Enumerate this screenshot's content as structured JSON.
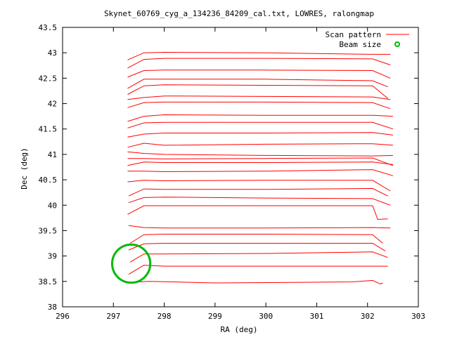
{
  "chart_data": {
    "type": "line",
    "title": "Skynet_60769_cyg_a_134236_84209_cal.txt, LOWRES, ralongmap",
    "xlabel": "RA (deg)",
    "ylabel": "Dec (deg)",
    "xlim": [
      296,
      303
    ],
    "ylim": [
      38,
      43.5
    ],
    "x_ticks": [
      296,
      297,
      298,
      299,
      300,
      301,
      302,
      303
    ],
    "y_ticks": [
      38,
      38.5,
      39,
      39.5,
      40,
      40.5,
      41,
      41.5,
      42,
      42.5,
      43,
      43.5
    ],
    "x_tick_labels": [
      "296",
      "297",
      "298",
      "299",
      "300",
      "301",
      "302",
      "303"
    ],
    "y_tick_labels": [
      "38",
      "38.5",
      "39",
      "39.5",
      "40",
      "40.5",
      "41",
      "41.5",
      "42",
      "42.5",
      "43",
      "43.5"
    ],
    "grid": false,
    "legend_position": "top-right",
    "colors": {
      "scan": "#ff0000",
      "beam": "#00bb00"
    },
    "series": [
      {
        "name": "Scan pattern",
        "scans": [
          {
            "dir": "L2R",
            "x": [
              297.33,
              297.7,
              299.0,
              300.5,
              301.7,
              302.1,
              302.25,
              302.3
            ],
            "y": [
              38.48,
              38.5,
              38.47,
              38.48,
              38.49,
              38.52,
              38.45,
              38.47
            ]
          },
          {
            "dir": "R2L",
            "x": [
              302.4,
              302.1,
              300.0,
              298.0,
              297.6,
              297.3
            ],
            "y": [
              38.8,
              38.8,
              38.8,
              38.8,
              38.82,
              38.64
            ]
          },
          {
            "dir": "L2R",
            "x": [
              297.33,
              297.6,
              298.0,
              300.0,
              302.1,
              302.4
            ],
            "y": [
              38.88,
              39.04,
              39.04,
              39.05,
              39.08,
              38.97
            ]
          },
          {
            "dir": "R2L",
            "x": [
              302.35,
              302.1,
              300.0,
              298.0,
              297.6,
              297.3
            ],
            "y": [
              39.1,
              39.25,
              39.25,
              39.25,
              39.24,
              39.12
            ]
          },
          {
            "dir": "L2R",
            "x": [
              297.33,
              297.6,
              298.0,
              300.0,
              302.1,
              302.3
            ],
            "y": [
              39.25,
              39.42,
              39.43,
              39.43,
              39.42,
              39.25
            ]
          },
          {
            "dir": "R2L",
            "x": [
              302.45,
              302.1,
              300.0,
              298.0,
              297.6,
              297.3
            ],
            "y": [
              39.55,
              39.56,
              39.55,
              39.55,
              39.56,
              39.6
            ]
          },
          {
            "dir": "L2R",
            "x": [
              297.28,
              297.6,
              298.0,
              300.0,
              302.1,
              302.2,
              302.4
            ],
            "y": [
              39.82,
              39.99,
              39.99,
              39.99,
              39.99,
              39.72,
              39.73
            ]
          },
          {
            "dir": "R2L",
            "x": [
              302.45,
              302.1,
              300.0,
              298.0,
              297.6,
              297.3
            ],
            "y": [
              40.0,
              40.13,
              40.14,
              40.16,
              40.15,
              40.05
            ]
          },
          {
            "dir": "L2R",
            "x": [
              297.3,
              297.6,
              298.0,
              300.0,
              302.1,
              302.4
            ],
            "y": [
              40.18,
              40.32,
              40.31,
              40.31,
              40.33,
              40.18
            ]
          },
          {
            "dir": "R2L",
            "x": [
              302.45,
              302.1,
              300.0,
              298.0,
              297.6,
              297.28
            ],
            "y": [
              40.28,
              40.49,
              40.49,
              40.48,
              40.49,
              40.46
            ]
          },
          {
            "dir": "L2R",
            "x": [
              297.28,
              297.6,
              298.0,
              300.0,
              302.1,
              302.5
            ],
            "y": [
              40.67,
              40.67,
              40.66,
              40.67,
              40.7,
              40.58
            ]
          },
          {
            "dir": "R2L",
            "x": [
              302.5,
              302.1,
              300.0,
              298.0,
              297.6,
              297.28
            ],
            "y": [
              40.8,
              40.85,
              40.84,
              40.84,
              40.85,
              40.78
            ]
          },
          {
            "dir": "L2R",
            "x": [
              297.28,
              297.6,
              298.0,
              300.0,
              302.1,
              302.5
            ],
            "y": [
              40.92,
              40.92,
              40.91,
              40.92,
              40.93,
              40.78
            ]
          },
          {
            "dir": "R2L",
            "x": [
              302.5,
              302.1,
              300.0,
              298.0,
              297.6,
              297.28
            ],
            "y": [
              40.98,
              40.97,
              40.98,
              41.0,
              41.02,
              41.05
            ]
          },
          {
            "dir": "L2R",
            "x": [
              297.28,
              297.6,
              298.0,
              300.0,
              302.1,
              302.5
            ],
            "y": [
              41.14,
              41.22,
              41.18,
              41.2,
              41.21,
              41.18
            ]
          },
          {
            "dir": "R2L",
            "x": [
              302.5,
              302.1,
              300.0,
              298.0,
              297.6,
              297.28
            ],
            "y": [
              41.38,
              41.43,
              41.42,
              41.42,
              41.4,
              41.34
            ]
          },
          {
            "dir": "L2R",
            "x": [
              297.28,
              297.6,
              298.0,
              300.0,
              302.1,
              302.5
            ],
            "y": [
              41.52,
              41.62,
              41.63,
              41.63,
              41.63,
              41.5
            ]
          },
          {
            "dir": "R2L",
            "x": [
              302.5,
              302.1,
              300.0,
              298.0,
              297.6,
              297.28
            ],
            "y": [
              41.75,
              41.77,
              41.77,
              41.78,
              41.75,
              41.65
            ]
          },
          {
            "dir": "L2R",
            "x": [
              297.28,
              297.6,
              298.0,
              300.0,
              302.1,
              302.45
            ],
            "y": [
              41.92,
              42.02,
              42.03,
              42.03,
              42.02,
              41.9
            ]
          },
          {
            "dir": "R2L",
            "x": [
              302.45,
              302.1,
              300.0,
              298.0,
              297.6,
              297.28
            ],
            "y": [
              42.08,
              42.13,
              42.14,
              42.15,
              42.12,
              42.08
            ]
          },
          {
            "dir": "L2R",
            "x": [
              297.28,
              297.6,
              298.0,
              300.0,
              302.1,
              302.4
            ],
            "y": [
              42.18,
              42.35,
              42.37,
              42.36,
              42.35,
              42.1
            ]
          },
          {
            "dir": "R2L",
            "x": [
              302.4,
              302.1,
              300.0,
              298.0,
              297.6,
              297.28
            ],
            "y": [
              42.33,
              42.45,
              42.48,
              42.48,
              42.48,
              42.3
            ]
          },
          {
            "dir": "L2R",
            "x": [
              297.28,
              297.6,
              298.0,
              300.0,
              302.1,
              302.45
            ],
            "y": [
              42.52,
              42.65,
              42.66,
              42.66,
              42.65,
              42.5
            ]
          },
          {
            "dir": "R2L",
            "x": [
              302.45,
              302.1,
              300.0,
              298.0,
              297.6,
              297.28
            ],
            "y": [
              42.76,
              42.88,
              42.89,
              42.89,
              42.87,
              42.7
            ]
          },
          {
            "dir": "L2R",
            "x": [
              297.28,
              297.6,
              298.0,
              300.0,
              302.1,
              302.45
            ],
            "y": [
              42.86,
              43.0,
              43.01,
              43.0,
              42.97,
              42.97
            ]
          }
        ]
      },
      {
        "name": "Beam size",
        "center": [
          297.35,
          38.85
        ],
        "radius_deg": 0.375
      }
    ]
  }
}
